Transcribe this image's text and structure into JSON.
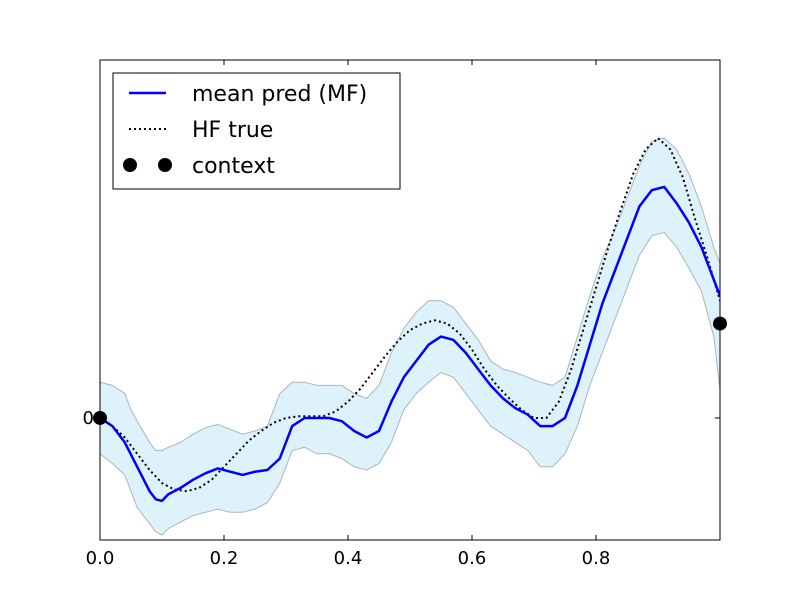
{
  "chart_data": {
    "type": "line",
    "title": "",
    "xlabel": "",
    "ylabel": "",
    "xlim": [
      0,
      1
    ],
    "ylim": [
      -0.75,
      2.2
    ],
    "grid": false,
    "legend_placement": "top-left",
    "x_ticks": [
      {
        "value": 0.0,
        "label": "0.0"
      },
      {
        "value": 0.2,
        "label": "0.2"
      },
      {
        "value": 0.4,
        "label": "0.4"
      },
      {
        "value": 0.6,
        "label": "0.6"
      },
      {
        "value": 0.8,
        "label": "0.8"
      }
    ],
    "y_ticks": [
      {
        "value": 0,
        "label": "0"
      }
    ],
    "legend": [
      {
        "label": "mean pred (MF)",
        "style": "solid-line",
        "color": "#0000ff"
      },
      {
        "label": "HF true",
        "style": "dotted-line",
        "color": "#000000"
      },
      {
        "label": "context",
        "style": "markers",
        "color": "#000000"
      }
    ],
    "series": [
      {
        "name": "mean pred (MF)",
        "color": "#0000ff",
        "style": "solid",
        "x": [
          0.0,
          0.02,
          0.04,
          0.06,
          0.08,
          0.09,
          0.1,
          0.11,
          0.13,
          0.15,
          0.17,
          0.19,
          0.21,
          0.23,
          0.25,
          0.27,
          0.29,
          0.31,
          0.33,
          0.35,
          0.37,
          0.39,
          0.41,
          0.43,
          0.45,
          0.47,
          0.49,
          0.51,
          0.53,
          0.55,
          0.57,
          0.59,
          0.61,
          0.63,
          0.65,
          0.67,
          0.69,
          0.71,
          0.73,
          0.75,
          0.77,
          0.79,
          0.81,
          0.83,
          0.85,
          0.87,
          0.89,
          0.91,
          0.93,
          0.95,
          0.97,
          0.99,
          1.0
        ],
        "y": [
          0.0,
          -0.05,
          -0.15,
          -0.3,
          -0.45,
          -0.5,
          -0.51,
          -0.47,
          -0.43,
          -0.38,
          -0.34,
          -0.31,
          -0.33,
          -0.35,
          -0.33,
          -0.32,
          -0.25,
          -0.05,
          0.0,
          0.0,
          0.0,
          -0.02,
          -0.08,
          -0.12,
          -0.08,
          0.1,
          0.25,
          0.35,
          0.45,
          0.5,
          0.48,
          0.4,
          0.3,
          0.2,
          0.12,
          0.06,
          0.02,
          -0.05,
          -0.05,
          0.0,
          0.2,
          0.45,
          0.7,
          0.9,
          1.1,
          1.3,
          1.4,
          1.42,
          1.32,
          1.2,
          1.05,
          0.85,
          0.75
        ]
      },
      {
        "name": "HF true",
        "color": "#000000",
        "style": "dotted",
        "x": [
          0.0,
          0.02,
          0.04,
          0.06,
          0.08,
          0.1,
          0.12,
          0.14,
          0.16,
          0.18,
          0.2,
          0.22,
          0.24,
          0.26,
          0.28,
          0.3,
          0.32,
          0.34,
          0.36,
          0.38,
          0.4,
          0.42,
          0.44,
          0.46,
          0.48,
          0.5,
          0.52,
          0.54,
          0.56,
          0.58,
          0.6,
          0.62,
          0.64,
          0.66,
          0.68,
          0.7,
          0.72,
          0.74,
          0.76,
          0.78,
          0.8,
          0.82,
          0.84,
          0.86,
          0.88,
          0.9,
          0.92,
          0.94,
          0.96,
          0.98,
          1.0
        ],
        "y": [
          0.0,
          -0.05,
          -0.12,
          -0.22,
          -0.32,
          -0.4,
          -0.44,
          -0.45,
          -0.43,
          -0.38,
          -0.3,
          -0.22,
          -0.14,
          -0.08,
          -0.03,
          0.0,
          0.01,
          0.01,
          0.01,
          0.04,
          0.1,
          0.18,
          0.28,
          0.38,
          0.47,
          0.54,
          0.58,
          0.6,
          0.58,
          0.52,
          0.42,
          0.3,
          0.2,
          0.12,
          0.05,
          0.0,
          0.0,
          0.1,
          0.3,
          0.55,
          0.8,
          1.05,
          1.28,
          1.5,
          1.65,
          1.72,
          1.65,
          1.48,
          1.22,
          0.98,
          0.72
        ]
      }
    ],
    "confidence_band": {
      "color": "#ddf2fa",
      "edge_color": "#a9b6bc",
      "x": [
        0.0,
        0.02,
        0.04,
        0.05,
        0.06,
        0.08,
        0.09,
        0.1,
        0.11,
        0.13,
        0.15,
        0.17,
        0.19,
        0.21,
        0.23,
        0.25,
        0.27,
        0.29,
        0.31,
        0.33,
        0.35,
        0.37,
        0.39,
        0.41,
        0.43,
        0.45,
        0.47,
        0.49,
        0.51,
        0.53,
        0.55,
        0.57,
        0.59,
        0.61,
        0.63,
        0.65,
        0.67,
        0.69,
        0.71,
        0.73,
        0.75,
        0.77,
        0.79,
        0.81,
        0.83,
        0.85,
        0.87,
        0.89,
        0.91,
        0.93,
        0.95,
        0.97,
        0.99,
        1.0
      ],
      "upper": [
        0.22,
        0.2,
        0.15,
        0.05,
        -0.02,
        -0.15,
        -0.2,
        -0.2,
        -0.18,
        -0.15,
        -0.1,
        -0.06,
        -0.04,
        -0.07,
        -0.1,
        -0.08,
        -0.05,
        0.15,
        0.22,
        0.22,
        0.2,
        0.2,
        0.2,
        0.15,
        0.12,
        0.2,
        0.4,
        0.55,
        0.65,
        0.72,
        0.72,
        0.68,
        0.58,
        0.48,
        0.35,
        0.3,
        0.28,
        0.25,
        0.22,
        0.2,
        0.25,
        0.5,
        0.75,
        0.98,
        1.15,
        1.35,
        1.55,
        1.7,
        1.72,
        1.65,
        1.5,
        1.3,
        1.05,
        0.95
      ],
      "lower": [
        -0.22,
        -0.28,
        -0.35,
        -0.45,
        -0.55,
        -0.65,
        -0.7,
        -0.72,
        -0.68,
        -0.64,
        -0.6,
        -0.58,
        -0.56,
        -0.58,
        -0.58,
        -0.56,
        -0.52,
        -0.4,
        -0.2,
        -0.18,
        -0.22,
        -0.22,
        -0.25,
        -0.3,
        -0.32,
        -0.28,
        -0.15,
        0.05,
        0.15,
        0.22,
        0.28,
        0.25,
        0.15,
        0.05,
        -0.05,
        -0.1,
        -0.15,
        -0.2,
        -0.3,
        -0.3,
        -0.22,
        -0.05,
        0.2,
        0.4,
        0.6,
        0.8,
        1.0,
        1.12,
        1.14,
        1.05,
        0.92,
        0.78,
        0.5,
        0.18
      ]
    },
    "context_points": [
      {
        "x": 0.0,
        "y": 0.0
      },
      {
        "x": 1.0,
        "y": 0.58
      }
    ]
  }
}
